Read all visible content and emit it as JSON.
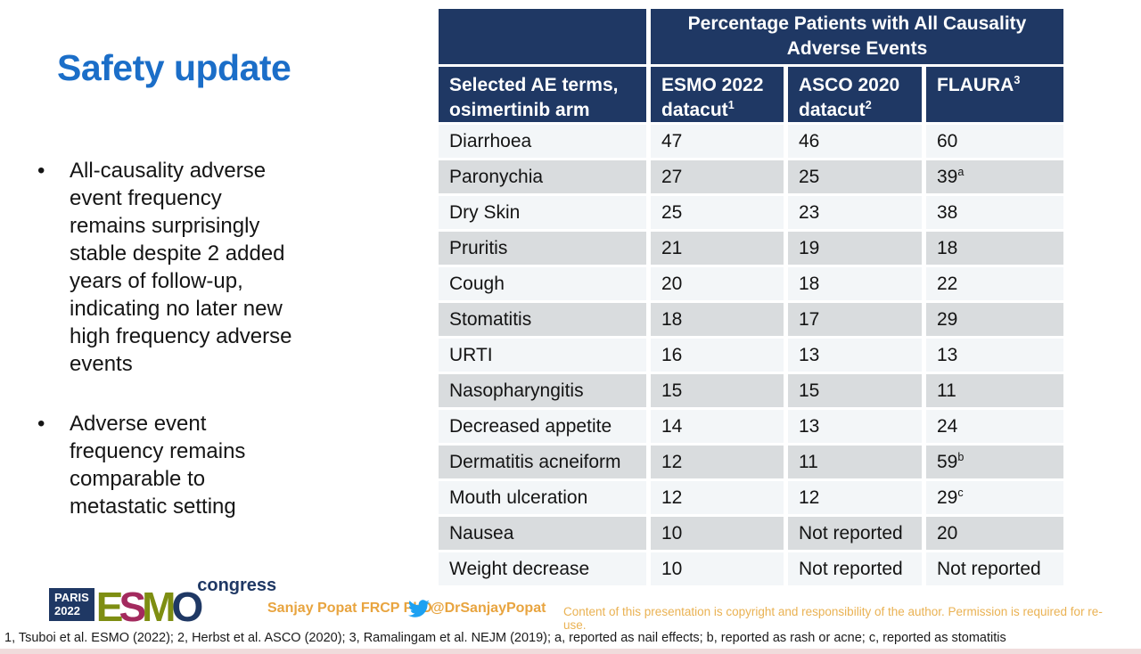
{
  "slide": {
    "title": "Safety update",
    "bullets": [
      "All-causality adverse\nevent frequency\nremains surprisingly\nstable despite 2 added\nyears of follow-up,\nindicating no later new\nhigh frequency adverse\nevents",
      "Adverse event\nfrequency remains\ncomparable to\nmetastatic setting"
    ]
  },
  "table": {
    "merged_header": "Percentage Patients with All Causality\nAdverse Events",
    "columns": [
      {
        "label": "Selected AE terms,\nosimertinib arm",
        "sup": ""
      },
      {
        "label": "ESMO 2022 datacut",
        "sup": "1"
      },
      {
        "label": "ASCO 2020 datacut",
        "sup": "2"
      },
      {
        "label": "FLAURA",
        "sup": "3"
      }
    ],
    "rows": [
      {
        "term": "Diarrhoea",
        "values": [
          "47",
          "46",
          "60"
        ],
        "sups": [
          "",
          "",
          ""
        ]
      },
      {
        "term": "Paronychia",
        "values": [
          "27",
          "25",
          "39"
        ],
        "sups": [
          "",
          "",
          "a"
        ]
      },
      {
        "term": "Dry Skin",
        "values": [
          "25",
          "23",
          "38"
        ],
        "sups": [
          "",
          "",
          ""
        ]
      },
      {
        "term": "Pruritis",
        "values": [
          "21",
          "19",
          "18"
        ],
        "sups": [
          "",
          "",
          ""
        ]
      },
      {
        "term": "Cough",
        "values": [
          "20",
          "18",
          "22"
        ],
        "sups": [
          "",
          "",
          ""
        ]
      },
      {
        "term": "Stomatitis",
        "values": [
          "18",
          "17",
          "29"
        ],
        "sups": [
          "",
          "",
          ""
        ]
      },
      {
        "term": "URTI",
        "values": [
          "16",
          "13",
          "13"
        ],
        "sups": [
          "",
          "",
          ""
        ]
      },
      {
        "term": "Nasopharyngitis",
        "values": [
          "15",
          "15",
          "11"
        ],
        "sups": [
          "",
          "",
          ""
        ]
      },
      {
        "term": "Decreased appetite",
        "values": [
          "14",
          "13",
          "24"
        ],
        "sups": [
          "",
          "",
          ""
        ]
      },
      {
        "term": "Dermatitis acneiform",
        "values": [
          "12",
          "11",
          "59"
        ],
        "sups": [
          "",
          "",
          "b"
        ]
      },
      {
        "term": "Mouth ulceration",
        "values": [
          "12",
          "12",
          "29"
        ],
        "sups": [
          "",
          "",
          "c"
        ]
      },
      {
        "term": "Nausea",
        "values": [
          "10",
          "Not reported",
          "20"
        ],
        "sups": [
          "",
          "",
          ""
        ]
      },
      {
        "term": "Weight decrease",
        "values": [
          "10",
          "Not reported",
          "Not reported"
        ],
        "sups": [
          "",
          "",
          ""
        ]
      }
    ]
  },
  "footer": {
    "logo": {
      "event_city": "PARIS",
      "event_year": "2022",
      "letters": [
        "E",
        "S",
        "M",
        "O"
      ],
      "congress": "congress"
    },
    "author": "Sanjay Popat FRCP PhD",
    "twitter_handle": "@DrSanjayPopat",
    "copyright": "Content of this presentation is copyright and responsibility of the author. Permission is required for re-use."
  },
  "footnote": "1, Tsuboi et al. ESMO (2022); 2, Herbst et al. ASCO (2020); 3, Ramalingam et al. NEJM (2019); a, reported as nail effects; b, reported as rash or acne; c, reported as stomatitis",
  "colors": {
    "navy": "#1f3864",
    "title_blue": "#1b6ec8",
    "row_light": "#f3f6f8",
    "row_gray": "#d9dcde",
    "accent_orange": "#e8a43f",
    "twitter_blue": "#1da1f2",
    "logo_green": "#7e8e12",
    "logo_magenta": "#a32a5e"
  }
}
